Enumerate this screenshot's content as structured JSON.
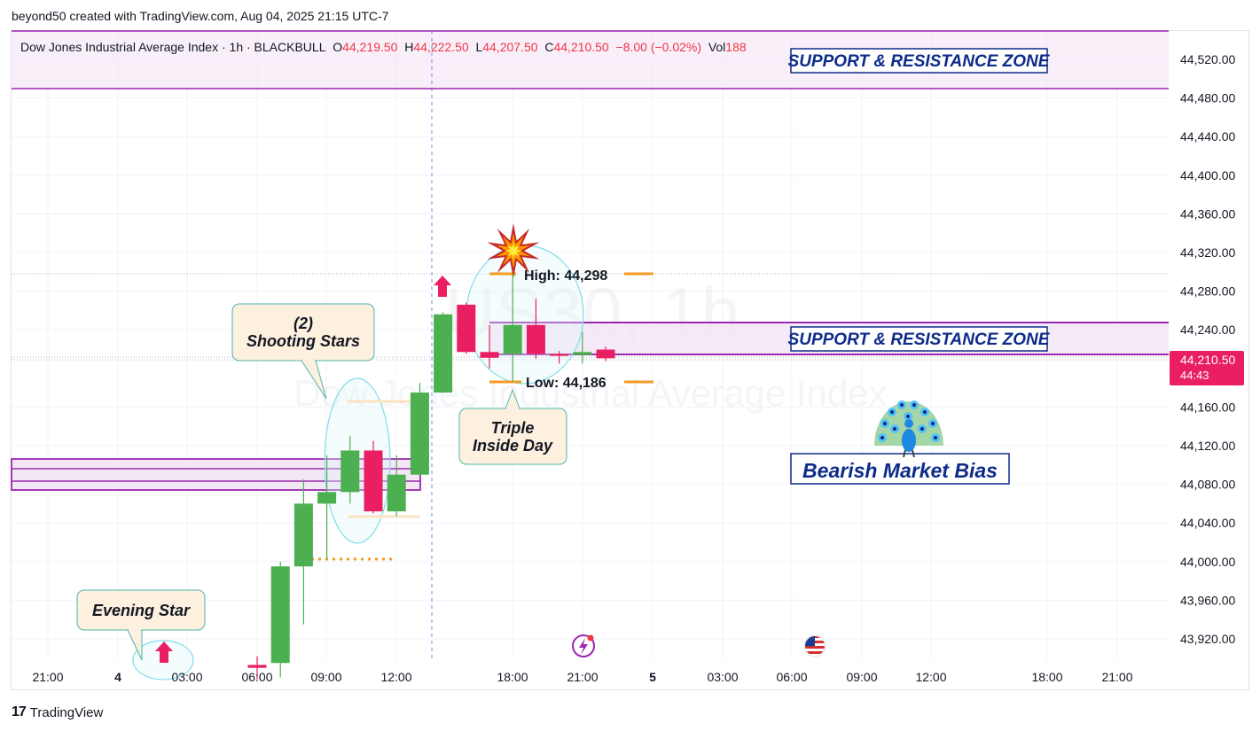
{
  "attribution": "beyond50 created with TradingView.com, Aug 04, 2025 21:15 UTC-7",
  "footer": {
    "brand": "TradingView"
  },
  "legend": {
    "symbol": "Dow Jones Industrial Average Index · 1h · BLACKBULL",
    "o_label": "O",
    "o": "44,219.50",
    "h_label": "H",
    "h": "44,222.50",
    "l_label": "L",
    "l": "44,207.50",
    "c_label": "C",
    "c": "44,210.50",
    "change": "−8.00 (−0.02%)",
    "vol_label": "Vol",
    "vol": "188"
  },
  "watermark": {
    "ticker": "US30, 1h",
    "name": "Dow Jones Industrial Average Index"
  },
  "colors": {
    "up": "#4caf50",
    "down": "#e91e63",
    "zone_fill": "#f3e5f5",
    "zone_line": "#9c27b0",
    "label_text": "#0d2b8a",
    "orange": "#f59b24",
    "price_badge": "#e91e63",
    "callout_fill": "#fdf0de",
    "callout_border": "#4db6ac"
  },
  "chart_data": {
    "type": "candlestick",
    "ylim": [
      43890,
      44555
    ],
    "y_ticks": [
      "44,520.00",
      "44,480.00",
      "44,440.00",
      "44,400.00",
      "44,360.00",
      "44,320.00",
      "44,280.00",
      "44,240.00",
      "44,160.00",
      "44,120.00",
      "44,080.00",
      "44,040.00",
      "44,000.00",
      "43,960.00",
      "43,920.00"
    ],
    "x_ticks": [
      "21:00",
      "4",
      "03:00",
      "06:00",
      "09:00",
      "12:00",
      "18:00",
      "21:00",
      "5",
      "03:00",
      "06:00",
      "09:00",
      "12:00",
      "18:00",
      "21:00"
    ],
    "last_price": "44,210.50",
    "countdown": "44:43",
    "candles": [
      {
        "i": 0,
        "o": 43893,
        "h": 43902,
        "l": 43878,
        "c": 43890
      },
      {
        "i": 1,
        "o": 43895,
        "h": 44000,
        "l": 43880,
        "c": 43995
      },
      {
        "i": 2,
        "o": 43995,
        "h": 44085,
        "l": 43935,
        "c": 44060
      },
      {
        "i": 3,
        "o": 44060,
        "h": 44110,
        "l": 44003,
        "c": 44072
      },
      {
        "i": 4,
        "o": 44072,
        "h": 44130,
        "l": 44060,
        "c": 44115
      },
      {
        "i": 5,
        "o": 44115,
        "h": 44125,
        "l": 44050,
        "c": 44052
      },
      {
        "i": 6,
        "o": 44052,
        "h": 44110,
        "l": 44047,
        "c": 44090
      },
      {
        "i": 7,
        "o": 44090,
        "h": 44185,
        "l": 44088,
        "c": 44175
      },
      {
        "i": 8,
        "o": 44175,
        "h": 44258,
        "l": 44175,
        "c": 44256
      },
      {
        "i": 9,
        "o": 44266,
        "h": 44268,
        "l": 44215,
        "c": 44217
      },
      {
        "i": 10,
        "o": 44217,
        "h": 44245,
        "l": 44200,
        "c": 44211
      },
      {
        "i": 11,
        "o": 44215,
        "h": 44298,
        "l": 44186,
        "c": 44245
      },
      {
        "i": 12,
        "o": 44245,
        "h": 44272,
        "l": 44210,
        "c": 44215
      },
      {
        "i": 13,
        "o": 44215,
        "h": 44218,
        "l": 44205,
        "c": 44213
      },
      {
        "i": 14,
        "o": 44214,
        "h": 44238,
        "l": 44205,
        "c": 44217
      },
      {
        "i": 15,
        "o": 44219.5,
        "h": 44222.5,
        "l": 44207.5,
        "c": 44210.5
      }
    ],
    "annotations": {
      "zone_top_label": "SUPPORT & RESISTANCE ZONE",
      "zone_mid_label": "SUPPORT & RESISTANCE ZONE",
      "bias_label": "Bearish Market Bias",
      "high_label": "High: 44,298",
      "low_label": "Low: 44,186",
      "shooting_line1": "(2)",
      "shooting_line2": "Shooting Stars",
      "triple_line1": "Triple",
      "triple_line2": "Inside Day",
      "evening_star": "Evening Star"
    }
  }
}
